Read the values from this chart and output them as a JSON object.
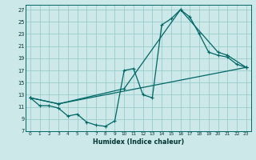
{
  "title": "",
  "xlabel": "Humidex (Indice chaleur)",
  "background_color": "#cce8e8",
  "grid_color": "#99cccc",
  "line_color": "#006666",
  "xlim": [
    -0.5,
    23.5
  ],
  "ylim": [
    7,
    27.8
  ],
  "yticks": [
    7,
    9,
    11,
    13,
    15,
    17,
    19,
    21,
    23,
    25,
    27
  ],
  "xticks": [
    0,
    1,
    2,
    3,
    4,
    5,
    6,
    7,
    8,
    9,
    10,
    11,
    12,
    13,
    14,
    15,
    16,
    17,
    18,
    19,
    20,
    21,
    22,
    23
  ],
  "line1_x": [
    0,
    1,
    2,
    3,
    4,
    5,
    6,
    7,
    8,
    9,
    10,
    11,
    12,
    13,
    14,
    15,
    16,
    17,
    18,
    19,
    20,
    21,
    22,
    23
  ],
  "line1_y": [
    12.5,
    11.2,
    11.2,
    10.8,
    9.5,
    9.8,
    8.5,
    8.0,
    7.8,
    8.7,
    17.0,
    17.3,
    13.0,
    12.5,
    24.5,
    25.5,
    27.0,
    25.8,
    23.0,
    20.0,
    19.5,
    19.2,
    18.0,
    17.5
  ],
  "line2_x": [
    0,
    3,
    23
  ],
  "line2_y": [
    12.5,
    11.5,
    17.5
  ],
  "line3_x": [
    0,
    3,
    10,
    16,
    20,
    21,
    23
  ],
  "line3_y": [
    12.5,
    11.5,
    14.0,
    27.0,
    20.0,
    19.5,
    17.5
  ]
}
